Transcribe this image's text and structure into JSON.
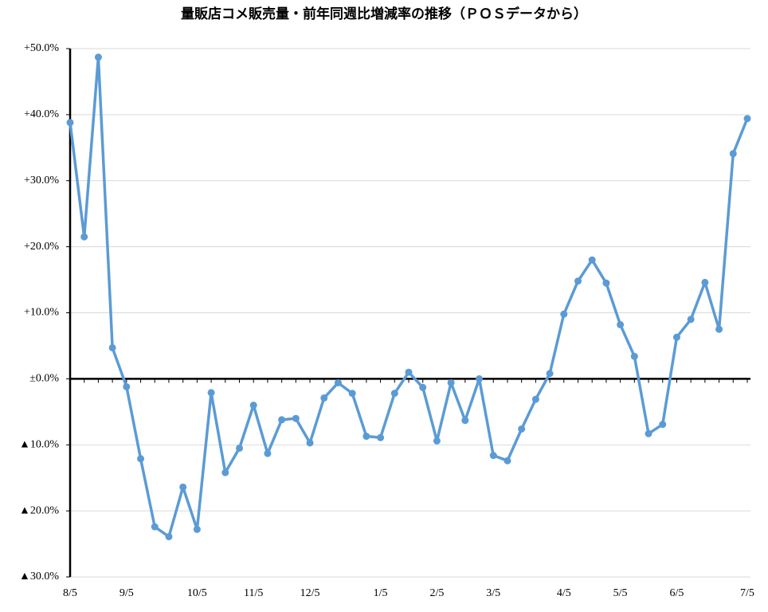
{
  "chart_data": {
    "type": "line",
    "title": "量販店コメ販売量・前年同週比増減率の推移（ＰＯＳデータから）",
    "categories": [
      "8/5",
      null,
      null,
      null,
      "9/5",
      null,
      null,
      null,
      null,
      "10/5",
      null,
      null,
      null,
      "11/5",
      null,
      null,
      null,
      "12/5",
      null,
      null,
      null,
      null,
      "1/5",
      null,
      null,
      null,
      "2/5",
      null,
      null,
      null,
      "3/5",
      null,
      null,
      null,
      null,
      "4/5",
      null,
      null,
      null,
      "5/5",
      null,
      null,
      null,
      "6/5",
      null,
      null,
      null,
      null,
      "7/5"
    ],
    "series": [
      {
        "color": "#5b9bd5",
        "values": [
          38.8,
          21.5,
          48.7,
          4.7,
          -1.2,
          -12.1,
          -22.4,
          -23.9,
          -16.4,
          -22.8,
          -2.1,
          -14.2,
          -10.5,
          -4.0,
          -11.3,
          -6.2,
          -6.0,
          -9.7,
          -2.9,
          -0.6,
          -2.2,
          -8.7,
          -8.9,
          -2.2,
          1.0,
          -1.3,
          -9.4,
          -0.6,
          -6.3,
          0.0,
          -11.6,
          -12.4,
          -7.6,
          -3.1,
          0.8,
          9.8,
          14.8,
          18.0,
          14.5,
          8.2,
          3.4,
          -8.3,
          -6.9,
          6.3,
          9.0,
          14.6,
          7.5,
          34.1,
          39.4
        ]
      }
    ],
    "ylim": [
      -30,
      50
    ],
    "yticks": [
      {
        "value": 50,
        "label": "+50.0%"
      },
      {
        "value": 40,
        "label": "+40.0%"
      },
      {
        "value": 30,
        "label": "+30.0%"
      },
      {
        "value": 20,
        "label": "+20.0%"
      },
      {
        "value": 10,
        "label": "+10.0%"
      },
      {
        "value": 0,
        "label": "±0.0%"
      },
      {
        "value": -10,
        "label": "▲10.0%"
      },
      {
        "value": -20,
        "label": "▲20.0%"
      },
      {
        "value": -30,
        "label": "▲30.0%"
      }
    ],
    "grid": true
  }
}
